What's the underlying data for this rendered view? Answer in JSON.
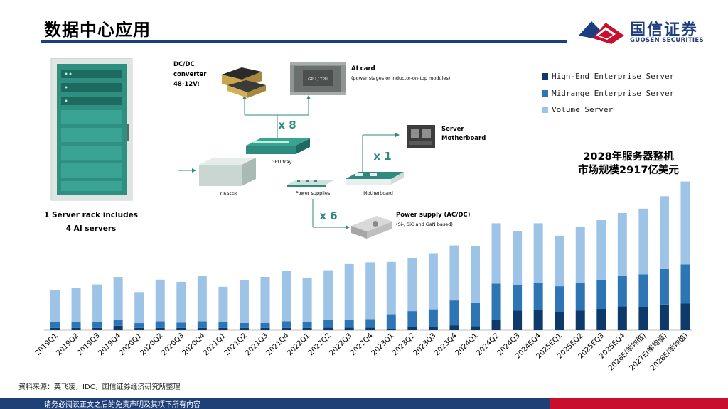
{
  "page": {
    "title": "数据中心应用",
    "source": "资料来源：英飞凌，IDC，国信证券经济研究所整理",
    "footer": "请务必阅读正文之后的免责声明及其项下所有内容"
  },
  "logo": {
    "cn": "国信证券",
    "en": "GUOSEN SECURITIES"
  },
  "diagram": {
    "rack_caption_1": "1 Server rack includes",
    "rack_caption_2": "4 AI servers",
    "dcdc_label_1": "DC/DC",
    "dcdc_label_2": "converter",
    "dcdc_label_3": "48-12V:",
    "gpu_chip_label": "GPU / TPU",
    "ai_card_title": "AI card",
    "ai_card_desc": "(power stages or inductor-on-top modules)",
    "x8": "x 8",
    "x1": "x 1",
    "x6": "x 6",
    "gpu_tray": "GPU tray",
    "chassis": "Chassis",
    "power_supplies": "Power supplies",
    "motherboard": "Motherboard",
    "server_mb_1": "Server",
    "server_mb_2": "Motherboard",
    "psu_title": "Power supply (AC/DC)",
    "psu_desc": "(Si-, SiC and GaN based)"
  },
  "market_note": {
    "line1": "2028年服务器整机",
    "line2": "市场规模2917亿美元"
  },
  "colors": {
    "high_end": "#0d3a6b",
    "midrange": "#2e75b6",
    "volume": "#9dc3e6",
    "teal": "#2e8b7e",
    "brand_blue": "#1d3d7c",
    "brand_red": "#c8102e"
  },
  "chart_data": {
    "type": "bar",
    "stacked": true,
    "categories": [
      "2019Q1",
      "2019Q2",
      "2019Q3",
      "2019Q4",
      "2020Q1",
      "2020Q2",
      "2020Q3",
      "2020Q4",
      "2021Q1",
      "2021Q2",
      "2021Q3",
      "2021Q4",
      "2022Q1",
      "2022Q2",
      "2022Q3",
      "2022Q4",
      "2023Q1",
      "2023Q2",
      "2023Q3",
      "2023Q4",
      "2024Q1",
      "2024Q2",
      "2024Q3",
      "2024EQ4",
      "2025EQ1",
      "2025EQ2",
      "2025EQ3",
      "2025EQ4",
      "2026E(季均值)",
      "2027E(季均值)",
      "2028E(季均值)"
    ],
    "series": [
      {
        "name": "High-End Enterprise Server",
        "values": [
          2.5,
          2.5,
          2.5,
          5.0,
          2.5,
          2.5,
          2.5,
          2.5,
          2.5,
          2.5,
          2.5,
          2.5,
          2.5,
          3.0,
          3.0,
          3.0,
          1.0,
          3.5,
          3.5,
          5.5,
          4.5,
          11.5,
          22.0,
          22.5,
          20.5,
          22.0,
          24.0,
          27.0,
          26.0,
          29.0,
          30.0
        ]
      },
      {
        "name": "Midrange Enterprise Server",
        "values": [
          6.5,
          7.0,
          7.0,
          7.0,
          5.5,
          7.5,
          6.0,
          7.5,
          6.5,
          5.5,
          5.5,
          7.5,
          7.0,
          8.5,
          9.0,
          9.5,
          17.0,
          18.0,
          20.0,
          28.0,
          26.0,
          41.0,
          29.0,
          31.0,
          29.0,
          31.0,
          33.0,
          34.0,
          37.0,
          40.0,
          44.0
        ]
      },
      {
        "name": "Volume Server",
        "values": [
          36.0,
          38.0,
          42.0,
          48.0,
          35.0,
          47.0,
          46.0,
          51.0,
          40.0,
          48.0,
          52.0,
          56.5,
          49.0,
          56.0,
          62.5,
          64.0,
          59.0,
          60.0,
          62.5,
          62.0,
          64.0,
          68.0,
          61.0,
          67.0,
          57.0,
          63.5,
          67.0,
          71.0,
          74.0,
          82.0,
          93.5
        ]
      }
    ],
    "ylim": [
      0,
      170
    ],
    "legend_position": "top-right",
    "grid": false,
    "annotation": "2028年服务器整机 市场规模2917亿美元"
  }
}
